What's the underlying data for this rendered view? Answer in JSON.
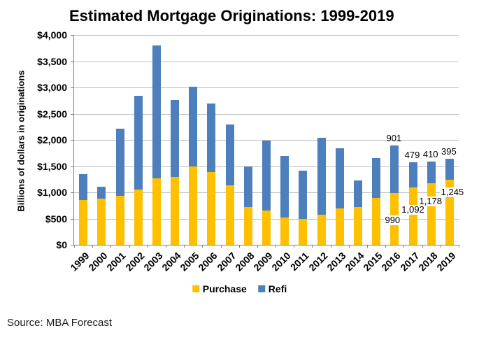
{
  "title": "Estimated Mortgage Originations: 1999-2019",
  "source": "Source: MBA Forecast",
  "colors": {
    "purchase": "#FFC000",
    "refi": "#4C7FBC",
    "gridline": "#BFBFBF",
    "axis": "#808080"
  },
  "chart_data": {
    "type": "bar",
    "stacked": true,
    "title": "Estimated Mortgage Originations: 1999-2019",
    "xlabel": "",
    "ylabel": "Billions of dollars in originations",
    "ylim": [
      0,
      4000
    ],
    "ytick_interval": 500,
    "ytick_labels": [
      "$0",
      "$500",
      "$1,000",
      "$1,500",
      "$2,000",
      "$2,500",
      "$3,000",
      "$3,500",
      "$4,000"
    ],
    "grid": true,
    "legend_position": "bottom",
    "categories": [
      "1999",
      "2000",
      "2001",
      "2002",
      "2003",
      "2004",
      "2005",
      "2006",
      "2007",
      "2008",
      "2009",
      "2010",
      "2011",
      "2012",
      "2013",
      "2014",
      "2015",
      "2016",
      "2017",
      "2018",
      "2019"
    ],
    "series": [
      {
        "name": "Purchase",
        "color": "#FFC000",
        "values": [
          860,
          875,
          930,
          1060,
          1265,
          1300,
          1500,
          1390,
          1130,
          720,
          660,
          520,
          490,
          580,
          700,
          720,
          890,
          990,
          1092,
          1178,
          1245
        ]
      },
      {
        "name": "Refi",
        "color": "#4C7FBC",
        "values": [
          490,
          235,
          1290,
          1780,
          2535,
          1460,
          1510,
          1310,
          1160,
          780,
          1330,
          1170,
          930,
          1460,
          1140,
          510,
          760,
          901,
          479,
          410,
          395
        ]
      }
    ],
    "data_labels": {
      "refi": {
        "2016": "901",
        "2017": "479",
        "2018": "410",
        "2019": "395"
      },
      "purchase": {
        "2016": "990",
        "2017": "1,092",
        "2018": "1,178",
        "2019": "1,245"
      }
    }
  }
}
